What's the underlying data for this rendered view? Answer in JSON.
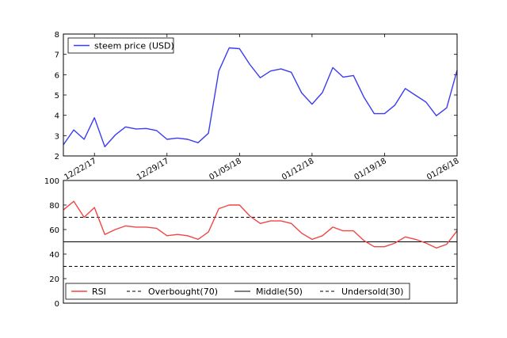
{
  "chart_data": [
    {
      "type": "line",
      "x": [
        "12/19/17",
        "12/20/17",
        "12/21/17",
        "12/22/17",
        "12/23/17",
        "12/24/17",
        "12/25/17",
        "12/26/17",
        "12/27/17",
        "12/28/17",
        "12/29/17",
        "12/30/17",
        "12/31/17",
        "01/01/18",
        "01/02/18",
        "01/03/18",
        "01/04/18",
        "01/05/18",
        "01/06/18",
        "01/07/18",
        "01/08/18",
        "01/09/18",
        "01/10/18",
        "01/11/18",
        "01/12/18",
        "01/13/18",
        "01/14/18",
        "01/15/18",
        "01/16/18",
        "01/17/18",
        "01/18/18",
        "01/19/18",
        "01/20/18",
        "01/21/18",
        "01/22/18",
        "01/23/18",
        "01/24/18",
        "01/25/18",
        "01/26/18"
      ],
      "xticks": [
        "12/22/17",
        "12/29/17",
        "01/05/18",
        "01/12/18",
        "01/19/18",
        "01/26/18"
      ],
      "ylim": [
        2,
        8
      ],
      "yticks": [
        2,
        3,
        4,
        5,
        6,
        7,
        8
      ],
      "legend_position": "top-left",
      "series": [
        {
          "name": "steem price (USD)",
          "color": "#3b3bf2",
          "style": "solid",
          "values": [
            2.55,
            3.28,
            2.82,
            3.88,
            2.45,
            3.03,
            3.43,
            3.33,
            3.35,
            3.25,
            2.82,
            2.88,
            2.82,
            2.65,
            3.12,
            6.18,
            7.32,
            7.28,
            6.5,
            5.85,
            6.18,
            6.28,
            6.12,
            5.1,
            4.55,
            5.12,
            6.35,
            5.88,
            5.96,
            4.9,
            4.08,
            4.08,
            4.5,
            5.32,
            4.98,
            4.65,
            3.98,
            4.37,
            6.22
          ]
        }
      ]
    },
    {
      "type": "line",
      "x": [
        "12/19/17",
        "12/20/17",
        "12/21/17",
        "12/22/17",
        "12/23/17",
        "12/24/17",
        "12/25/17",
        "12/26/17",
        "12/27/17",
        "12/28/17",
        "12/29/17",
        "12/30/17",
        "12/31/17",
        "01/01/18",
        "01/02/18",
        "01/03/18",
        "01/04/18",
        "01/05/18",
        "01/06/18",
        "01/07/18",
        "01/08/18",
        "01/09/18",
        "01/10/18",
        "01/11/18",
        "01/12/18",
        "01/13/18",
        "01/14/18",
        "01/15/18",
        "01/16/18",
        "01/17/18",
        "01/18/18",
        "01/19/18",
        "01/20/18",
        "01/21/18",
        "01/22/18",
        "01/23/18",
        "01/24/18",
        "01/25/18",
        "01/26/18"
      ],
      "ylim": [
        0,
        100
      ],
      "yticks": [
        0,
        20,
        40,
        60,
        80,
        100
      ],
      "legend_position": "bottom",
      "series": [
        {
          "name": "RSI",
          "color": "#f04545",
          "style": "solid",
          "values": [
            76,
            83,
            70,
            78,
            56,
            60,
            63,
            62,
            62,
            61,
            55,
            56,
            55,
            52,
            58,
            77,
            80,
            80,
            71,
            65,
            67,
            67,
            65,
            57,
            52,
            55,
            62,
            59,
            59,
            51,
            46,
            46,
            49,
            54,
            52,
            49,
            45,
            48,
            59
          ]
        }
      ],
      "reference_lines": [
        {
          "name": "Overbought(70)",
          "value": 70,
          "color": "#000000",
          "style": "dashed"
        },
        {
          "name": "Middle(50)",
          "value": 50,
          "color": "#000000",
          "style": "solid"
        },
        {
          "name": "Undersold(30)",
          "value": 30,
          "color": "#000000",
          "style": "dashed"
        }
      ]
    }
  ]
}
